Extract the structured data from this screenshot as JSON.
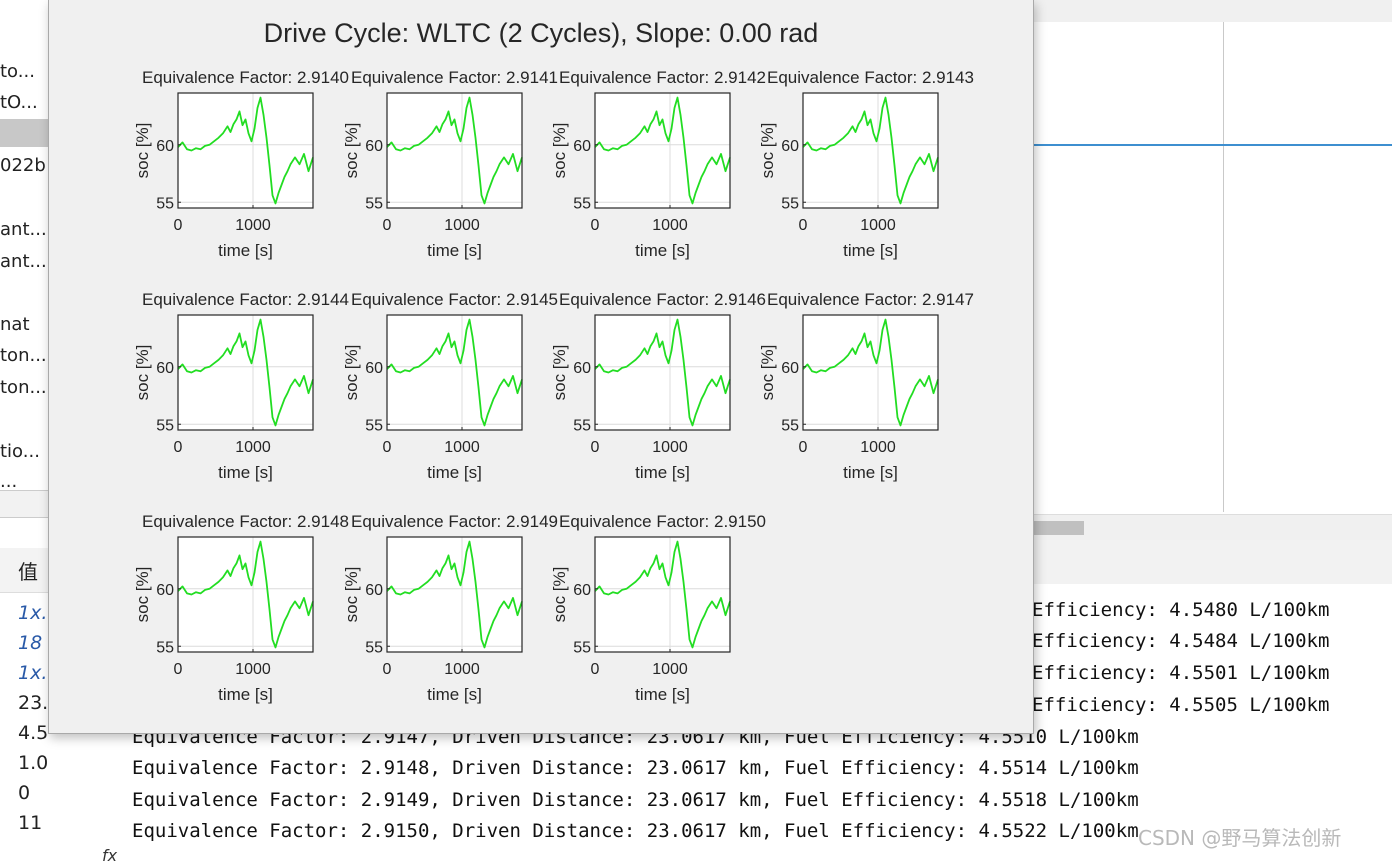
{
  "sidebar": {
    "files": [
      {
        "label": "to...",
        "selected": false
      },
      {
        "label": "tO...",
        "selected": false
      },
      {
        "label": "",
        "selected": true
      },
      {
        "label": "022b",
        "selected": false
      },
      {
        "label": "ant....",
        "selected": false
      },
      {
        "label": "ant....",
        "selected": false
      },
      {
        "label": "nat",
        "selected": false
      },
      {
        "label": "ton...",
        "selected": false
      },
      {
        "label": "ton...",
        "selected": false
      },
      {
        "label": "tio...",
        "selected": false
      },
      {
        "label": "...",
        "selected": false
      }
    ],
    "workspace_header": "值",
    "workspace_values": [
      "1x.",
      "18",
      "1x.",
      "23.",
      "4.5",
      "1.0",
      "0",
      "11"
    ]
  },
  "figure": {
    "title": "Drive Cycle: WLTC (2 Cycles), Slope: 0.00 rad",
    "line_color": "#22dd22",
    "subplots": [
      {
        "title": "Equivalence Factor: 2.9140",
        "ylabel": "soc [%]",
        "xlabel": "time [s]",
        "yticks": [
          "60",
          "55"
        ],
        "xticks": [
          "0",
          "1000"
        ]
      },
      {
        "title": "Equivalence Factor: 2.9141",
        "ylabel": "soc [%]",
        "xlabel": "time [s]",
        "yticks": [
          "60",
          "55"
        ],
        "xticks": [
          "0",
          "1000"
        ]
      },
      {
        "title": "Equivalence Factor: 2.9142",
        "ylabel": "soc [%]",
        "xlabel": "time [s]",
        "yticks": [
          "60",
          "55"
        ],
        "xticks": [
          "0",
          "1000"
        ]
      },
      {
        "title": "Equivalence Factor: 2.9143",
        "ylabel": "soc [%]",
        "xlabel": "time [s]",
        "yticks": [
          "60",
          "55"
        ],
        "xticks": [
          "0",
          "1000"
        ]
      },
      {
        "title": "Equivalence Factor: 2.9144",
        "ylabel": "soc [%]",
        "xlabel": "time [s]",
        "yticks": [
          "60",
          "55"
        ],
        "xticks": [
          "0",
          "1000"
        ]
      },
      {
        "title": "Equivalence Factor: 2.9145",
        "ylabel": "soc [%]",
        "xlabel": "time [s]",
        "yticks": [
          "60",
          "55"
        ],
        "xticks": [
          "0",
          "1000"
        ]
      },
      {
        "title": "Equivalence Factor: 2.9146",
        "ylabel": "soc [%]",
        "xlabel": "time [s]",
        "yticks": [
          "60",
          "55"
        ],
        "xticks": [
          "0",
          "1000"
        ]
      },
      {
        "title": "Equivalence Factor: 2.9147",
        "ylabel": "soc [%]",
        "xlabel": "time [s]",
        "yticks": [
          "60",
          "55"
        ],
        "xticks": [
          "0",
          "1000"
        ]
      },
      {
        "title": "Equivalence Factor: 2.9148",
        "ylabel": "soc [%]",
        "xlabel": "time [s]",
        "yticks": [
          "60",
          "55"
        ],
        "xticks": [
          "0",
          "1000"
        ]
      },
      {
        "title": "Equivalence Factor: 2.9149",
        "ylabel": "soc [%]",
        "xlabel": "time [s]",
        "yticks": [
          "60",
          "55"
        ],
        "xticks": [
          "0",
          "1000"
        ]
      },
      {
        "title": "Equivalence Factor: 2.9150",
        "ylabel": "soc [%]",
        "xlabel": "time [s]",
        "yticks": [
          "60",
          "55"
        ],
        "xticks": [
          "0",
          "1000"
        ]
      }
    ]
  },
  "chart_data": {
    "type": "line",
    "title": "Drive Cycle: WLTC (2 Cycles), Slope: 0.00 rad",
    "xlabel": "time [s]",
    "ylabel": "soc [%]",
    "xlim": [
      0,
      1800
    ],
    "ylim": [
      54.5,
      64.5
    ],
    "grid": true,
    "x": [
      0,
      60,
      120,
      180,
      240,
      300,
      360,
      420,
      480,
      540,
      600,
      660,
      700,
      740,
      780,
      820,
      860,
      900,
      940,
      980,
      1020,
      1060,
      1100,
      1140,
      1180,
      1220,
      1260,
      1300,
      1340,
      1380,
      1420,
      1460,
      1500,
      1560,
      1620,
      1680,
      1740,
      1800
    ],
    "series": [
      {
        "values": [
          59.8,
          60.2,
          59.6,
          59.5,
          59.7,
          59.6,
          59.9,
          60.0,
          60.3,
          60.6,
          61.0,
          61.6,
          61.1,
          61.8,
          62.2,
          62.9,
          61.7,
          62.2,
          61.0,
          60.3,
          61.4,
          63.2,
          64.1,
          62.6,
          60.6,
          58.2,
          55.6,
          54.9,
          55.8,
          56.5,
          57.2,
          57.7,
          58.3,
          58.9,
          58.3,
          59.2,
          57.7,
          58.9
        ]
      }
    ]
  },
  "console": {
    "lines": [
      {
        "text": "Efficiency: 4.5480 L/100km",
        "left": true
      },
      {
        "text": "Efficiency: 4.5484 L/100km",
        "left": true
      },
      {
        "text": "Efficiency: 4.5501 L/100km",
        "left": true
      },
      {
        "text": "Efficiency: 4.5505 L/100km",
        "left": true
      },
      {
        "text": "Equivalence Factor: 2.9147, Driven Distance: 23.0617 km, Fuel Efficiency: 4.5510 L/100km",
        "left": false
      },
      {
        "text": "Equivalence Factor: 2.9148, Driven Distance: 23.0617 km, Fuel Efficiency: 4.5514 L/100km",
        "left": false
      },
      {
        "text": "Equivalence Factor: 2.9149, Driven Distance: 23.0617 km, Fuel Efficiency: 4.5518 L/100km",
        "left": false
      },
      {
        "text": "Equivalence Factor: 2.9150, Driven Distance: 23.0617 km, Fuel Efficiency: 4.5522 L/100km",
        "left": false
      }
    ],
    "prompt": "fx",
    "watermark": "CSDN @野马算法创新"
  }
}
